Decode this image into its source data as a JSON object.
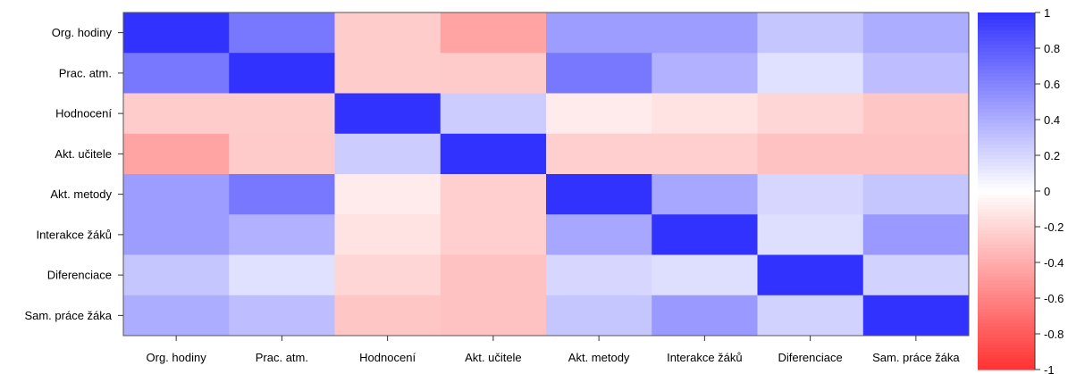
{
  "chart_data": {
    "type": "heatmap",
    "title": "",
    "xlabel": "",
    "ylabel": "",
    "grid": false,
    "legend_placement": "right",
    "rows": [
      "Org. hodiny",
      "Prac. atm.",
      "Hodnocení",
      "Akt. učitele",
      "Akt. metody",
      "Interakce žáků",
      "Diferenciace",
      "Sam. práce žáka"
    ],
    "columns": [
      "Org. hodiny",
      "Prac. atm.",
      "Hodnocení",
      "Akt. učitele",
      "Akt. metody",
      "Interakce žáků",
      "Diferenciace",
      "Sam. práce žáka"
    ],
    "values": [
      [
        1.0,
        0.66,
        -0.25,
        -0.45,
        0.48,
        0.48,
        0.28,
        0.4
      ],
      [
        0.66,
        1.0,
        -0.25,
        -0.26,
        0.66,
        0.38,
        0.15,
        0.32
      ],
      [
        -0.25,
        -0.25,
        1.0,
        0.25,
        -0.1,
        -0.14,
        -0.2,
        -0.28
      ],
      [
        -0.45,
        -0.26,
        0.25,
        1.0,
        -0.24,
        -0.24,
        -0.3,
        -0.3
      ],
      [
        0.48,
        0.66,
        -0.1,
        -0.24,
        1.0,
        0.43,
        0.2,
        0.28
      ],
      [
        0.48,
        0.38,
        -0.14,
        -0.24,
        0.43,
        1.0,
        0.16,
        0.5
      ],
      [
        0.28,
        0.15,
        -0.2,
        -0.3,
        0.2,
        0.16,
        1.0,
        0.22
      ],
      [
        0.4,
        0.32,
        -0.28,
        -0.3,
        0.28,
        0.5,
        0.22,
        1.0
      ]
    ],
    "color_scale": {
      "min": -1,
      "max": 1,
      "low_color": "#ff3232",
      "mid_color": "#ffffff",
      "high_color": "#3232ff",
      "ticks": [
        1,
        0.8,
        0.6,
        0.4,
        0.2,
        0,
        -0.2,
        -0.4,
        -0.6,
        -0.8,
        -1
      ]
    }
  }
}
